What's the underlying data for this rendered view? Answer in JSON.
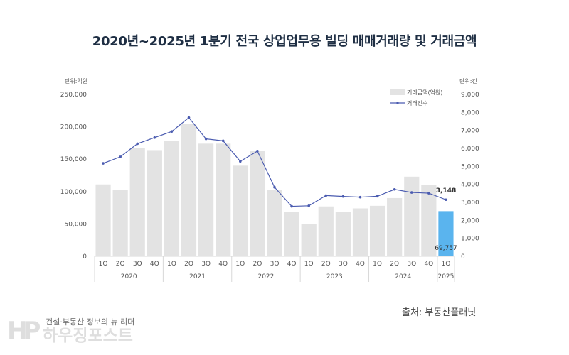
{
  "chart_data": {
    "type": "bar",
    "title": "2020년~2025년 1분기 전국 상업업무용 빌딩 매매거래량 및 거래금액",
    "left_unit": "단위:억원",
    "right_unit": "단위:건",
    "categories": [
      "1Q",
      "2Q",
      "3Q",
      "4Q",
      "1Q",
      "2Q",
      "3Q",
      "4Q",
      "1Q",
      "2Q",
      "3Q",
      "4Q",
      "1Q",
      "2Q",
      "3Q",
      "4Q",
      "1Q",
      "2Q",
      "3Q",
      "4Q",
      "1Q"
    ],
    "years": [
      {
        "label": "2020",
        "count": 4
      },
      {
        "label": "2021",
        "count": 4
      },
      {
        "label": "2022",
        "count": 4
      },
      {
        "label": "2023",
        "count": 4
      },
      {
        "label": "2024",
        "count": 4
      },
      {
        "label": "2025",
        "count": 1
      }
    ],
    "series": [
      {
        "name": "거래금액(억원)",
        "kind": "bar",
        "axis": "left",
        "color": "#e3e3e3",
        "highlight_color": "#5ab4ee",
        "values": [
          111000,
          103000,
          167000,
          164000,
          178000,
          204000,
          174000,
          174000,
          140000,
          163000,
          103000,
          68000,
          50000,
          77000,
          68000,
          74000,
          78000,
          90000,
          123000,
          110000,
          69757
        ]
      },
      {
        "name": "거래건수",
        "kind": "line",
        "axis": "right",
        "color": "#4a5bb0",
        "values": [
          5170,
          5530,
          6260,
          6600,
          6940,
          7710,
          6530,
          6420,
          5280,
          5850,
          3840,
          2780,
          2810,
          3380,
          3330,
          3290,
          3340,
          3720,
          3550,
          3510,
          3148
        ]
      }
    ],
    "y_left": {
      "min": 0,
      "max": 250000,
      "ticks": [
        "0",
        "50,000",
        "100,000",
        "150,000",
        "200,000",
        "250,000"
      ]
    },
    "y_right": {
      "min": 0,
      "max": 9000,
      "ticks": [
        "0",
        "1,000",
        "2,000",
        "3,000",
        "4,000",
        "5,000",
        "6,000",
        "7,000",
        "8,000",
        "9,000"
      ]
    },
    "annotations": {
      "last_bar_label": "69,757",
      "last_point_label": "3,148"
    },
    "legend_placement": "top-right",
    "grid": false
  },
  "source": "출처: 부동산플래닛",
  "logo": {
    "tagline": "건설·부동산 정보의 뉴 리더",
    "mark": "HP",
    "name": "하우징포스트"
  }
}
